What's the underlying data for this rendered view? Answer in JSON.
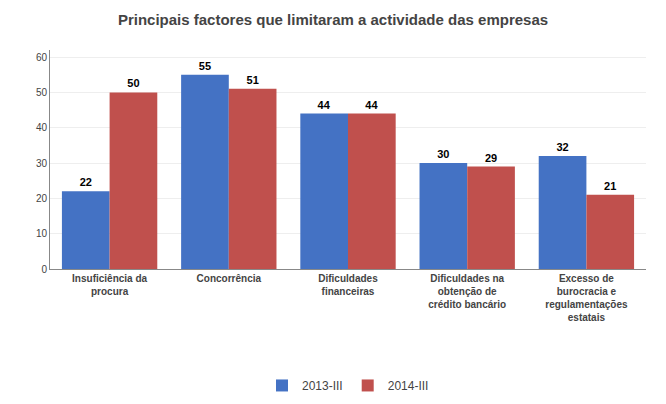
{
  "chart_data": {
    "type": "bar",
    "title": "Principais factores que limitaram a actividade das empresas",
    "categories": [
      "Insuficiência da\nprocura",
      "Concorrência",
      "Dificuldades\nfinanceiras",
      "Dificuldades na\nobtenção de\ncrédito bancário",
      "Excesso de\nburocracia e\nregulamentações\nestatais"
    ],
    "series": [
      {
        "name": "2013-III",
        "color": "#4472C4",
        "values": [
          22,
          55,
          44,
          30,
          32
        ]
      },
      {
        "name": "2014-III",
        "color": "#C0504D",
        "values": [
          50,
          51,
          44,
          29,
          21
        ]
      }
    ],
    "ylim": [
      0,
      62
    ],
    "yticks": [
      0,
      10,
      20,
      30,
      40,
      50,
      60
    ],
    "grid": true,
    "legend": "bottom",
    "data_labels": true
  }
}
